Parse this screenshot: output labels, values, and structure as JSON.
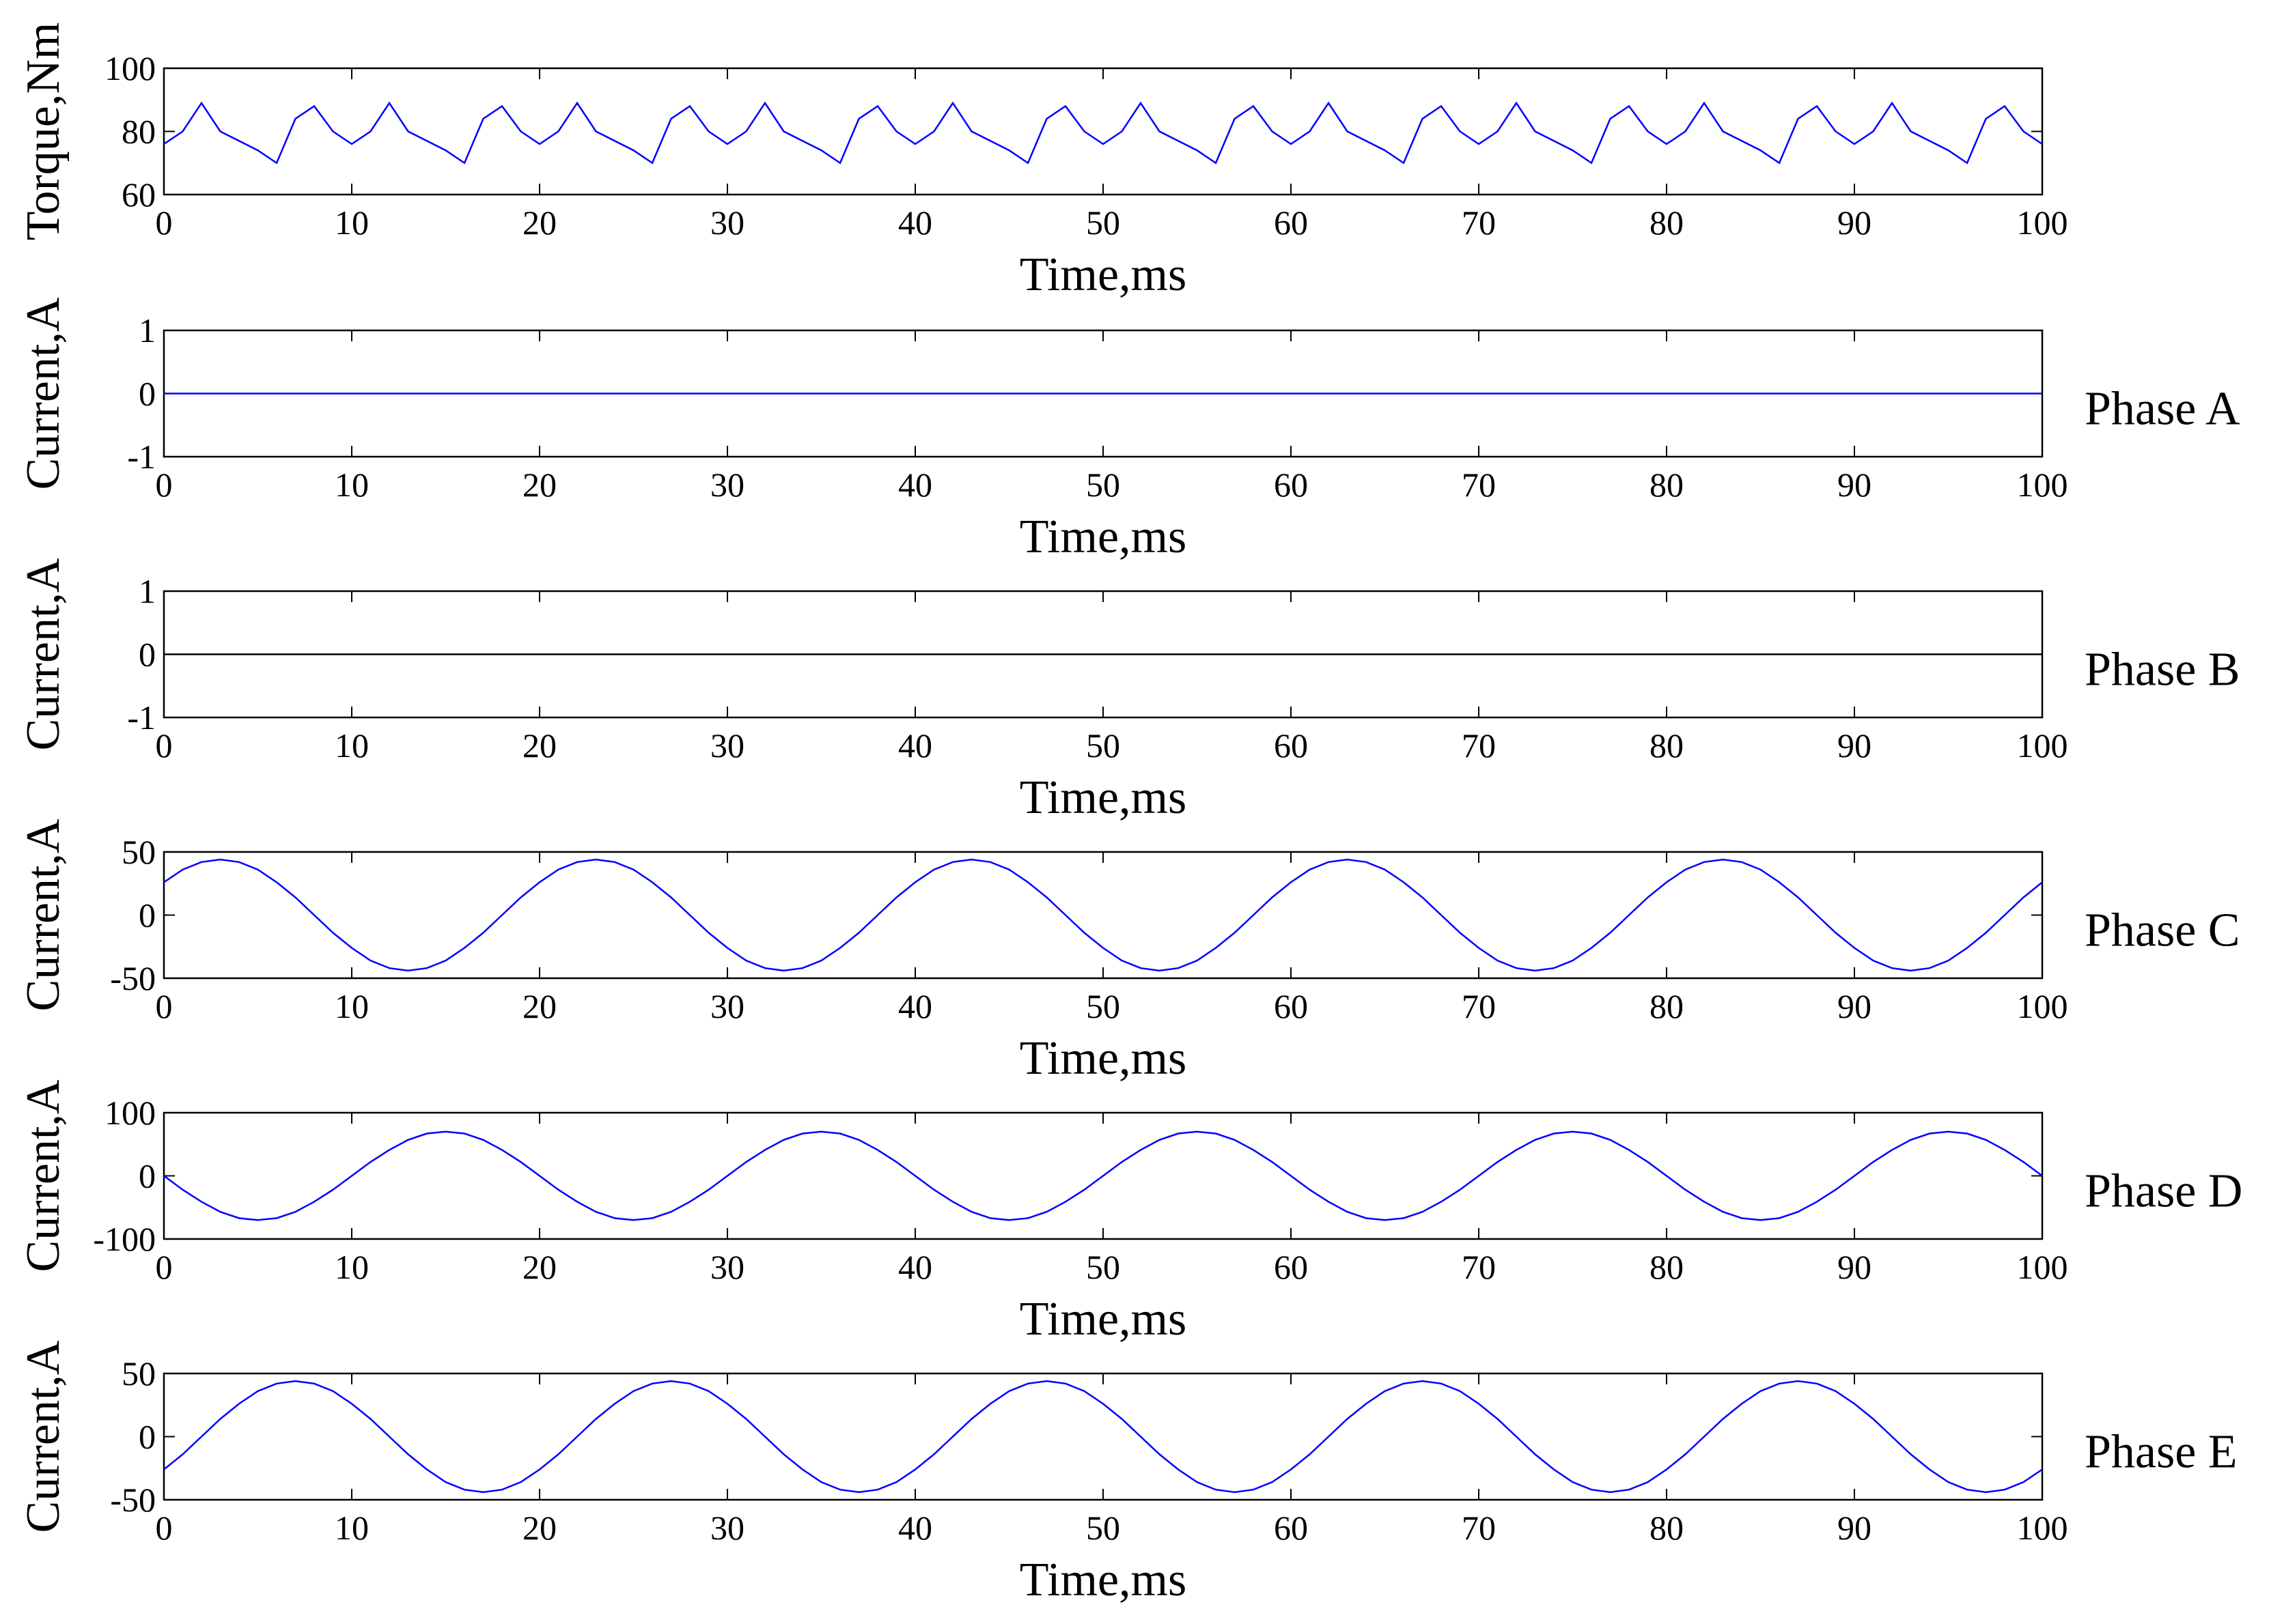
{
  "chart_data": [
    {
      "type": "line",
      "ylabel": "Torque,Nm",
      "xlabel": "Time,ms",
      "color": "#0000ff",
      "xlim": [
        0,
        100
      ],
      "xticks": [
        0,
        10,
        20,
        30,
        40,
        50,
        60,
        70,
        80,
        90,
        100
      ],
      "ylim": [
        60,
        100
      ],
      "yticks": [
        60,
        80,
        100
      ],
      "x": [
        0,
        1,
        2,
        3,
        4,
        5,
        6,
        7,
        8,
        9,
        10,
        11,
        12,
        13,
        14,
        15,
        16,
        17,
        18,
        19,
        20,
        21,
        22,
        23,
        24,
        25,
        26,
        27,
        28,
        29,
        30,
        31,
        32,
        33,
        34,
        35,
        36,
        37,
        38,
        39,
        40,
        41,
        42,
        43,
        44,
        45,
        46,
        47,
        48,
        49,
        50,
        51,
        52,
        53,
        54,
        55,
        56,
        57,
        58,
        59,
        60,
        61,
        62,
        63,
        64,
        65,
        66,
        67,
        68,
        69,
        70,
        71,
        72,
        73,
        74,
        75,
        76,
        77,
        78,
        79,
        80,
        81,
        82,
        83,
        84,
        85,
        86,
        87,
        88,
        89,
        90,
        91,
        92,
        93,
        94,
        95,
        96,
        97,
        98,
        99,
        100
      ],
      "values": [
        76,
        80,
        89,
        80,
        77,
        74,
        70,
        84,
        88,
        80,
        76,
        80,
        89,
        80,
        77,
        74,
        70,
        84,
        88,
        80,
        76,
        80,
        89,
        80,
        77,
        74,
        70,
        84,
        88,
        80,
        76,
        80,
        89,
        80,
        77,
        74,
        70,
        84,
        88,
        80,
        76,
        80,
        89,
        80,
        77,
        74,
        70,
        84,
        88,
        80,
        76,
        80,
        89,
        80,
        77,
        74,
        70,
        84,
        88,
        80,
        76,
        80,
        89,
        80,
        77,
        74,
        70,
        84,
        88,
        80,
        76,
        80,
        89,
        80,
        77,
        74,
        70,
        84,
        88,
        80,
        76,
        80,
        89,
        80,
        77,
        74,
        70,
        84,
        88,
        80,
        76,
        80,
        89,
        80,
        77,
        74,
        70,
        84,
        88,
        80,
        76
      ]
    },
    {
      "type": "line",
      "ylabel": "Current,A",
      "xlabel": "Time,ms",
      "annotation": "Phase A",
      "color": "#0000ff",
      "xlim": [
        0,
        100
      ],
      "xticks": [
        0,
        10,
        20,
        30,
        40,
        50,
        60,
        70,
        80,
        90,
        100
      ],
      "ylim": [
        -1,
        1
      ],
      "yticks": [
        -1,
        0,
        1
      ],
      "x": [
        0,
        100
      ],
      "values": [
        0,
        0
      ]
    },
    {
      "type": "line",
      "ylabel": "Current,A",
      "xlabel": "Time,ms",
      "annotation": "Phase B",
      "color": "#000000",
      "xlim": [
        0,
        100
      ],
      "xticks": [
        0,
        10,
        20,
        30,
        40,
        50,
        60,
        70,
        80,
        90,
        100
      ],
      "ylim": [
        -1,
        1
      ],
      "yticks": [
        -1,
        0,
        1
      ],
      "x": [
        0,
        100
      ],
      "values": [
        0,
        0
      ]
    },
    {
      "type": "line",
      "ylabel": "Current,A",
      "xlabel": "Time,ms",
      "annotation": "Phase C",
      "color": "#0000ff",
      "xlim": [
        0,
        100
      ],
      "xticks": [
        0,
        10,
        20,
        30,
        40,
        50,
        60,
        70,
        80,
        90,
        100
      ],
      "ylim": [
        -50,
        50
      ],
      "yticks": [
        -50,
        0,
        50
      ],
      "x": [
        0,
        1,
        2,
        3,
        4,
        5,
        6,
        7,
        8,
        9,
        10,
        11,
        12,
        13,
        14,
        15,
        16,
        17,
        18,
        19,
        20,
        21,
        22,
        23,
        24,
        25,
        26,
        27,
        28,
        29,
        30,
        31,
        32,
        33,
        34,
        35,
        36,
        37,
        38,
        39,
        40,
        41,
        42,
        43,
        44,
        45,
        46,
        47,
        48,
        49,
        50,
        51,
        52,
        53,
        54,
        55,
        56,
        57,
        58,
        59,
        60,
        61,
        62,
        63,
        64,
        65,
        66,
        67,
        68,
        69,
        70,
        71,
        72,
        73,
        74,
        75,
        76,
        77,
        78,
        79,
        80,
        81,
        82,
        83,
        84,
        85,
        86,
        87,
        88,
        89,
        90,
        91,
        92,
        93,
        94,
        95,
        96,
        97,
        98,
        99,
        100
      ],
      "values": [
        26,
        36,
        42,
        44,
        42,
        36,
        26,
        14,
        0,
        -14,
        -26,
        -36,
        -42,
        -44,
        -42,
        -36,
        -26,
        -14,
        0,
        14,
        26,
        36,
        42,
        44,
        42,
        36,
        26,
        14,
        0,
        -14,
        -26,
        -36,
        -42,
        -44,
        -42,
        -36,
        -26,
        -14,
        0,
        14,
        26,
        36,
        42,
        44,
        42,
        36,
        26,
        14,
        0,
        -14,
        -26,
        -36,
        -42,
        -44,
        -42,
        -36,
        -26,
        -14,
        0,
        14,
        26,
        36,
        42,
        44,
        42,
        36,
        26,
        14,
        0,
        -14,
        -26,
        -36,
        -42,
        -44,
        -42,
        -36,
        -26,
        -14,
        0,
        14,
        26,
        36,
        42,
        44,
        42,
        36,
        26,
        14,
        0,
        -14,
        -26,
        -36,
        -42,
        -44,
        -42,
        -36,
        -26,
        -14,
        0,
        14,
        26
      ]
    },
    {
      "type": "line",
      "ylabel": "Current,A",
      "xlabel": "Time,ms",
      "annotation": "Phase D",
      "color": "#0000ff",
      "xlim": [
        0,
        100
      ],
      "xticks": [
        0,
        10,
        20,
        30,
        40,
        50,
        60,
        70,
        80,
        90,
        100
      ],
      "ylim": [
        -100,
        100
      ],
      "yticks": [
        -100,
        0,
        100
      ],
      "x": [
        0,
        1,
        2,
        3,
        4,
        5,
        6,
        7,
        8,
        9,
        10,
        11,
        12,
        13,
        14,
        15,
        16,
        17,
        18,
        19,
        20,
        21,
        22,
        23,
        24,
        25,
        26,
        27,
        28,
        29,
        30,
        31,
        32,
        33,
        34,
        35,
        36,
        37,
        38,
        39,
        40,
        41,
        42,
        43,
        44,
        45,
        46,
        47,
        48,
        49,
        50,
        51,
        52,
        53,
        54,
        55,
        56,
        57,
        58,
        59,
        60,
        61,
        62,
        63,
        64,
        65,
        66,
        67,
        68,
        69,
        70,
        71,
        72,
        73,
        74,
        75,
        76,
        77,
        78,
        79,
        80,
        81,
        82,
        83,
        84,
        85,
        86,
        87,
        88,
        89,
        90,
        91,
        92,
        93,
        94,
        95,
        96,
        97,
        98,
        99,
        100
      ],
      "values": [
        0,
        -22,
        -41,
        -57,
        -67,
        -70,
        -67,
        -57,
        -41,
        -22,
        0,
        22,
        41,
        57,
        67,
        70,
        67,
        57,
        41,
        22,
        0,
        -22,
        -41,
        -57,
        -67,
        -70,
        -67,
        -57,
        -41,
        -22,
        0,
        22,
        41,
        57,
        67,
        70,
        67,
        57,
        41,
        22,
        0,
        -22,
        -41,
        -57,
        -67,
        -70,
        -67,
        -57,
        -41,
        -22,
        0,
        22,
        41,
        57,
        67,
        70,
        67,
        57,
        41,
        22,
        0,
        -22,
        -41,
        -57,
        -67,
        -70,
        -67,
        -57,
        -41,
        -22,
        0,
        22,
        41,
        57,
        67,
        70,
        67,
        57,
        41,
        22,
        0,
        -22,
        -41,
        -57,
        -67,
        -70,
        -67,
        -57,
        -41,
        -22,
        0,
        22,
        41,
        57,
        67,
        70,
        67,
        57,
        41,
        22,
        0
      ]
    },
    {
      "type": "line",
      "ylabel": "Current,A",
      "xlabel": "Time,ms",
      "annotation": "Phase E",
      "color": "#0000ff",
      "xlim": [
        0,
        100
      ],
      "xticks": [
        0,
        10,
        20,
        30,
        40,
        50,
        60,
        70,
        80,
        90,
        100
      ],
      "ylim": [
        -50,
        50
      ],
      "yticks": [
        -50,
        0,
        50
      ],
      "x": [
        0,
        1,
        2,
        3,
        4,
        5,
        6,
        7,
        8,
        9,
        10,
        11,
        12,
        13,
        14,
        15,
        16,
        17,
        18,
        19,
        20,
        21,
        22,
        23,
        24,
        25,
        26,
        27,
        28,
        29,
        30,
        31,
        32,
        33,
        34,
        35,
        36,
        37,
        38,
        39,
        40,
        41,
        42,
        43,
        44,
        45,
        46,
        47,
        48,
        49,
        50,
        51,
        52,
        53,
        54,
        55,
        56,
        57,
        58,
        59,
        60,
        61,
        62,
        63,
        64,
        65,
        66,
        67,
        68,
        69,
        70,
        71,
        72,
        73,
        74,
        75,
        76,
        77,
        78,
        79,
        80,
        81,
        82,
        83,
        84,
        85,
        86,
        87,
        88,
        89,
        90,
        91,
        92,
        93,
        94,
        95,
        96,
        97,
        98,
        99,
        100
      ],
      "values": [
        -26,
        -14,
        0,
        14,
        26,
        36,
        42,
        44,
        42,
        36,
        26,
        14,
        0,
        -14,
        -26,
        -36,
        -42,
        -44,
        -42,
        -36,
        -26,
        -14,
        0,
        14,
        26,
        36,
        42,
        44,
        42,
        36,
        26,
        14,
        0,
        -14,
        -26,
        -36,
        -42,
        -44,
        -42,
        -36,
        -26,
        -14,
        0,
        14,
        26,
        36,
        42,
        44,
        42,
        36,
        26,
        14,
        0,
        -14,
        -26,
        -36,
        -42,
        -44,
        -42,
        -36,
        -26,
        -14,
        0,
        14,
        26,
        36,
        42,
        44,
        42,
        36,
        26,
        14,
        0,
        -14,
        -26,
        -36,
        -42,
        -44,
        -42,
        -36,
        -26,
        -14,
        0,
        14,
        26,
        36,
        42,
        44,
        42,
        36,
        26,
        14,
        0,
        -14,
        -26,
        -36,
        -42,
        -44,
        -42,
        -36,
        -26
      ]
    }
  ]
}
